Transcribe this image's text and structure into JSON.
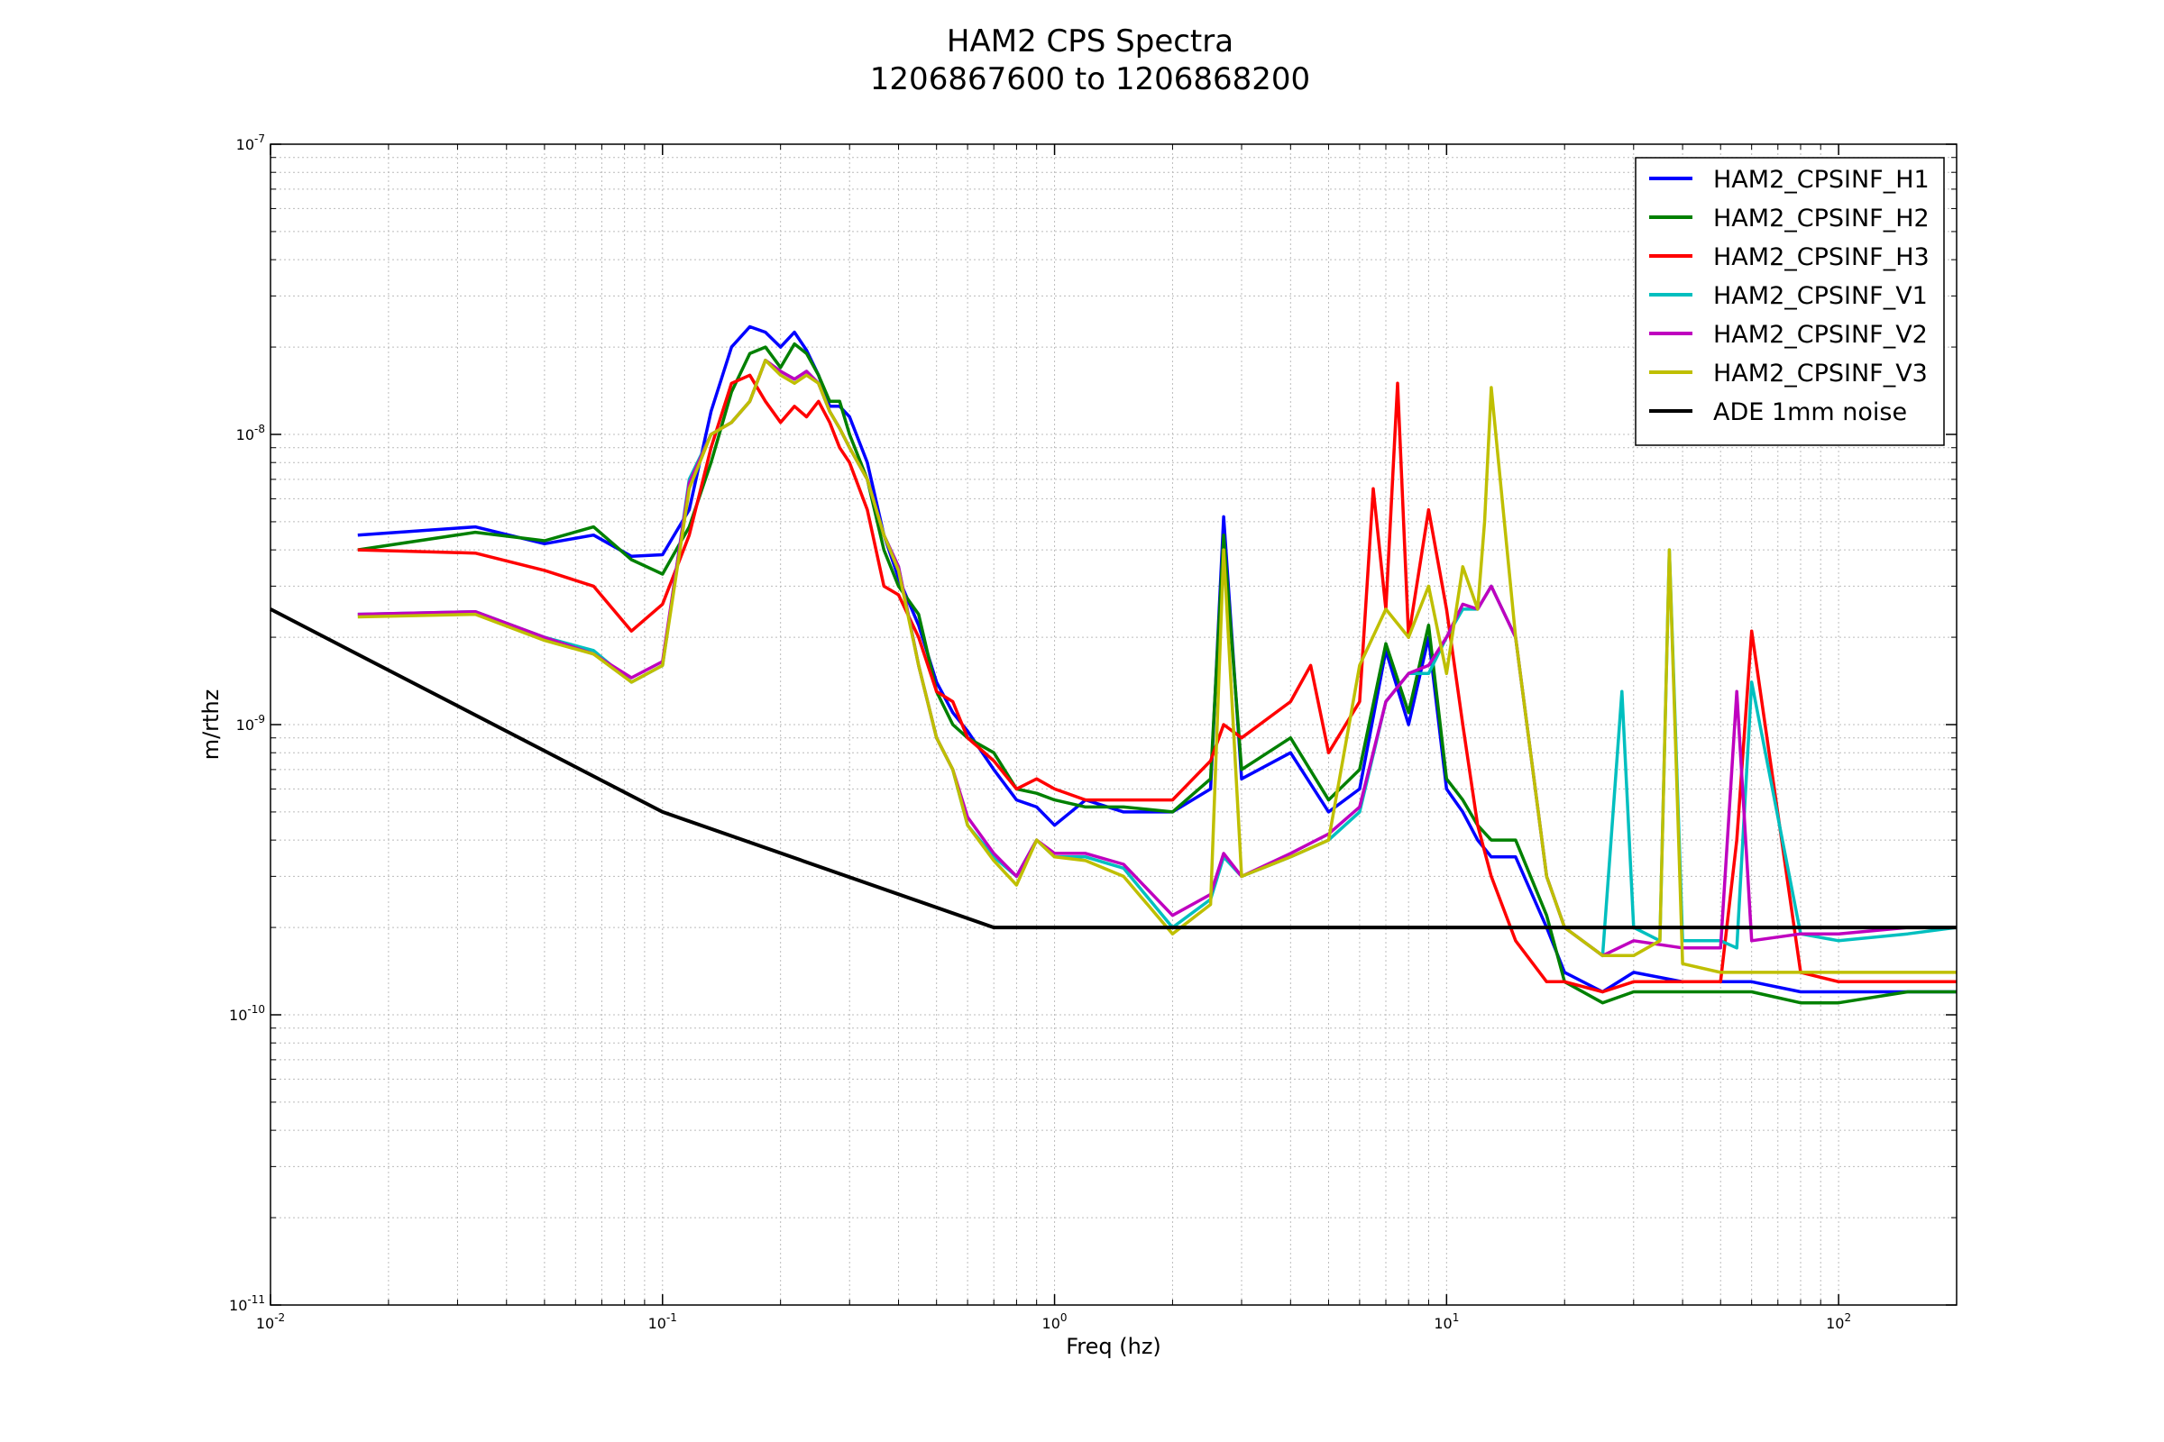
{
  "chart_data": {
    "type": "line",
    "title": "HAM2 CPS Spectra",
    "subtitle": "1206867600 to 1206868200",
    "xlabel": "Freq (hz)",
    "ylabel": "m/rthz",
    "xscale": "log",
    "yscale": "log",
    "xlim": [
      0.01,
      200
    ],
    "ylim": [
      1e-11,
      1e-07
    ],
    "grid": true,
    "legend_position": "top-right",
    "x_ticks": [
      {
        "value": 0.01,
        "base": "10",
        "exp": "-2"
      },
      {
        "value": 0.1,
        "base": "10",
        "exp": "-1"
      },
      {
        "value": 1,
        "base": "10",
        "exp": "0"
      },
      {
        "value": 10,
        "base": "10",
        "exp": "1"
      },
      {
        "value": 100,
        "base": "10",
        "exp": "2"
      }
    ],
    "y_ticks": [
      {
        "value": 1e-11,
        "base": "10",
        "exp": "-11"
      },
      {
        "value": 1e-10,
        "base": "10",
        "exp": "-10"
      },
      {
        "value": 1e-09,
        "base": "10",
        "exp": "-9"
      },
      {
        "value": 1e-08,
        "base": "10",
        "exp": "-8"
      },
      {
        "value": 1e-07,
        "base": "10",
        "exp": "-7"
      }
    ],
    "series": [
      {
        "name": "HAM2_CPSINF_H1",
        "color": "#0000ff",
        "x": [
          0.0167,
          0.0333,
          0.05,
          0.0667,
          0.0833,
          0.1,
          0.117,
          0.133,
          0.15,
          0.167,
          0.183,
          0.2,
          0.217,
          0.233,
          0.25,
          0.267,
          0.283,
          0.3,
          0.333,
          0.367,
          0.4,
          0.45,
          0.5,
          0.55,
          0.6,
          0.7,
          0.8,
          0.9,
          1.0,
          1.2,
          1.5,
          2.0,
          2.5,
          2.7,
          3.0,
          4.0,
          5.0,
          6.0,
          7.0,
          8.0,
          9.0,
          10,
          11,
          12,
          13,
          15,
          18,
          20,
          25,
          30,
          40,
          50,
          60,
          80,
          100,
          150,
          200
        ],
        "y": [
          4.5e-09,
          4.8e-09,
          4.2e-09,
          4.5e-09,
          3.8e-09,
          3.85e-09,
          5.5e-09,
          1.2e-08,
          2e-08,
          2.35e-08,
          2.25e-08,
          2e-08,
          2.25e-08,
          1.95e-08,
          1.6e-08,
          1.25e-08,
          1.25e-08,
          1.15e-08,
          8e-09,
          4.5e-09,
          3.2e-09,
          2.2e-09,
          1.4e-09,
          1.1e-09,
          9.5e-10,
          7e-10,
          5.5e-10,
          5.2e-10,
          4.5e-10,
          5.5e-10,
          5e-10,
          5e-10,
          6e-10,
          5.2e-09,
          6.5e-10,
          8e-10,
          5e-10,
          6e-10,
          1.8e-09,
          1e-09,
          2e-09,
          6e-10,
          5e-10,
          4e-10,
          3.5e-10,
          3.5e-10,
          2e-10,
          1.4e-10,
          1.2e-10,
          1.4e-10,
          1.3e-10,
          1.3e-10,
          1.3e-10,
          1.2e-10,
          1.2e-10,
          1.2e-10,
          1.2e-10
        ]
      },
      {
        "name": "HAM2_CPSINF_H2",
        "color": "#008000",
        "x": [
          0.0167,
          0.0333,
          0.05,
          0.0667,
          0.0833,
          0.1,
          0.117,
          0.133,
          0.15,
          0.167,
          0.183,
          0.2,
          0.217,
          0.233,
          0.25,
          0.267,
          0.283,
          0.3,
          0.333,
          0.367,
          0.4,
          0.45,
          0.5,
          0.55,
          0.6,
          0.7,
          0.8,
          0.9,
          1.0,
          1.2,
          1.5,
          2.0,
          2.5,
          2.7,
          3.0,
          4.0,
          5.0,
          6.0,
          7.0,
          8.0,
          9.0,
          10,
          11,
          12,
          13,
          15,
          18,
          20,
          25,
          30,
          40,
          50,
          60,
          80,
          100,
          150,
          200
        ],
        "y": [
          4e-09,
          4.6e-09,
          4.3e-09,
          4.8e-09,
          3.7e-09,
          3.3e-09,
          4.8e-09,
          8e-09,
          1.4e-08,
          1.9e-08,
          2e-08,
          1.7e-08,
          2.05e-08,
          1.9e-08,
          1.6e-08,
          1.3e-08,
          1.3e-08,
          1e-08,
          7e-09,
          4e-09,
          3e-09,
          2.4e-09,
          1.3e-09,
          1e-09,
          9e-10,
          8e-10,
          6e-10,
          5.8e-10,
          5.5e-10,
          5.2e-10,
          5.2e-10,
          5e-10,
          6.5e-10,
          4.5e-09,
          7e-10,
          9e-10,
          5.5e-10,
          7e-10,
          1.9e-09,
          1.1e-09,
          2.2e-09,
          6.5e-10,
          5.5e-10,
          4.5e-10,
          4e-10,
          4e-10,
          2.2e-10,
          1.3e-10,
          1.1e-10,
          1.2e-10,
          1.2e-10,
          1.2e-10,
          1.2e-10,
          1.1e-10,
          1.1e-10,
          1.2e-10,
          1.2e-10
        ]
      },
      {
        "name": "HAM2_CPSINF_H3",
        "color": "#ff0000",
        "x": [
          0.0167,
          0.0333,
          0.05,
          0.0667,
          0.0833,
          0.1,
          0.117,
          0.133,
          0.15,
          0.167,
          0.183,
          0.2,
          0.217,
          0.233,
          0.25,
          0.267,
          0.283,
          0.3,
          0.333,
          0.367,
          0.4,
          0.45,
          0.5,
          0.55,
          0.6,
          0.7,
          0.8,
          0.9,
          1.0,
          1.2,
          1.5,
          2.0,
          2.5,
          2.7,
          3.0,
          4.0,
          4.5,
          5.0,
          6.0,
          6.5,
          7.0,
          7.5,
          8.0,
          9.0,
          10,
          11,
          12,
          13,
          15,
          18,
          20,
          25,
          30,
          40,
          50,
          55,
          60,
          80,
          100,
          150,
          200
        ],
        "y": [
          4e-09,
          3.9e-09,
          3.4e-09,
          3e-09,
          2.1e-09,
          2.6e-09,
          4.5e-09,
          9e-09,
          1.5e-08,
          1.6e-08,
          1.3e-08,
          1.1e-08,
          1.25e-08,
          1.15e-08,
          1.3e-08,
          1.1e-08,
          9e-09,
          8e-09,
          5.5e-09,
          3e-09,
          2.8e-09,
          2e-09,
          1.3e-09,
          1.2e-09,
          9e-10,
          7.5e-10,
          6e-10,
          6.5e-10,
          6e-10,
          5.5e-10,
          5.5e-10,
          5.5e-10,
          7.5e-10,
          1e-09,
          9e-10,
          1.2e-09,
          1.6e-09,
          8e-10,
          1.2e-09,
          6.5e-09,
          2.5e-09,
          1.5e-08,
          2e-09,
          5.5e-09,
          2.5e-09,
          1e-09,
          4.5e-10,
          3e-10,
          1.8e-10,
          1.3e-10,
          1.3e-10,
          1.2e-10,
          1.3e-10,
          1.3e-10,
          1.3e-10,
          4e-10,
          2.1e-09,
          1.4e-10,
          1.3e-10,
          1.3e-10,
          1.3e-10
        ]
      },
      {
        "name": "HAM2_CPSINF_V1",
        "color": "#00bfbf",
        "x": [
          0.0167,
          0.0333,
          0.05,
          0.0667,
          0.0833,
          0.1,
          0.117,
          0.133,
          0.15,
          0.167,
          0.183,
          0.2,
          0.217,
          0.233,
          0.25,
          0.267,
          0.283,
          0.3,
          0.333,
          0.367,
          0.4,
          0.45,
          0.5,
          0.55,
          0.6,
          0.7,
          0.8,
          0.9,
          1.0,
          1.2,
          1.5,
          2.0,
          2.5,
          2.7,
          3.0,
          4.0,
          5.0,
          6.0,
          7.0,
          8.0,
          9.0,
          10,
          11,
          12,
          13,
          15,
          18,
          20,
          25,
          28,
          30,
          35,
          37,
          40,
          50,
          55,
          60,
          80,
          100,
          150,
          200
        ],
        "y": [
          2.4e-09,
          2.45e-09,
          2e-09,
          1.8e-09,
          1.4e-09,
          1.6e-09,
          7e-09,
          1e-08,
          1.1e-08,
          1.3e-08,
          1.8e-08,
          1.65e-08,
          1.55e-08,
          1.65e-08,
          1.5e-08,
          1.2e-08,
          1.05e-08,
          9e-09,
          7e-09,
          4.5e-09,
          3.5e-09,
          1.6e-09,
          9e-10,
          7e-10,
          4.5e-10,
          3.5e-10,
          3e-10,
          4e-10,
          3.5e-10,
          3.5e-10,
          3.2e-10,
          2e-10,
          2.5e-10,
          3.5e-10,
          3e-10,
          3.5e-10,
          4e-10,
          5e-10,
          1.2e-09,
          1.5e-09,
          1.5e-09,
          2e-09,
          2.5e-09,
          2.5e-09,
          3e-09,
          2e-09,
          3e-10,
          2e-10,
          1.6e-10,
          1.3e-09,
          2e-10,
          1.8e-10,
          4e-09,
          1.8e-10,
          1.8e-10,
          1.7e-10,
          1.4e-09,
          1.9e-10,
          1.8e-10,
          1.9e-10,
          2e-10
        ]
      },
      {
        "name": "HAM2_CPSINF_V2",
        "color": "#bf00bf",
        "x": [
          0.0167,
          0.0333,
          0.05,
          0.0667,
          0.0833,
          0.1,
          0.117,
          0.133,
          0.15,
          0.167,
          0.183,
          0.2,
          0.217,
          0.233,
          0.25,
          0.267,
          0.283,
          0.3,
          0.333,
          0.367,
          0.4,
          0.45,
          0.5,
          0.55,
          0.6,
          0.7,
          0.8,
          0.9,
          1.0,
          1.2,
          1.5,
          2.0,
          2.5,
          2.7,
          3.0,
          4.0,
          5.0,
          6.0,
          7.0,
          8.0,
          9.0,
          10,
          11,
          12,
          13,
          15,
          18,
          20,
          25,
          30,
          40,
          50,
          55,
          60,
          80,
          100,
          150,
          200
        ],
        "y": [
          2.4e-09,
          2.45e-09,
          2e-09,
          1.75e-09,
          1.45e-09,
          1.65e-09,
          6.8e-09,
          1e-08,
          1.1e-08,
          1.3e-08,
          1.8e-08,
          1.65e-08,
          1.55e-08,
          1.65e-08,
          1.5e-08,
          1.2e-08,
          1.05e-08,
          9e-09,
          7e-09,
          4.5e-09,
          3.5e-09,
          1.6e-09,
          9e-10,
          7e-10,
          4.8e-10,
          3.6e-10,
          3e-10,
          4e-10,
          3.6e-10,
          3.6e-10,
          3.3e-10,
          2.2e-10,
          2.6e-10,
          3.6e-10,
          3e-10,
          3.6e-10,
          4.2e-10,
          5.2e-10,
          1.2e-09,
          1.5e-09,
          1.6e-09,
          2e-09,
          2.6e-09,
          2.5e-09,
          3e-09,
          2e-09,
          3e-10,
          2e-10,
          1.6e-10,
          1.8e-10,
          1.7e-10,
          1.7e-10,
          1.3e-09,
          1.8e-10,
          1.9e-10,
          1.9e-10,
          2e-10,
          2e-10
        ]
      },
      {
        "name": "HAM2_CPSINF_V3",
        "color": "#bfbf00",
        "x": [
          0.0167,
          0.0333,
          0.05,
          0.0667,
          0.0833,
          0.1,
          0.117,
          0.133,
          0.15,
          0.167,
          0.183,
          0.2,
          0.217,
          0.233,
          0.25,
          0.267,
          0.283,
          0.3,
          0.333,
          0.367,
          0.4,
          0.45,
          0.5,
          0.55,
          0.6,
          0.7,
          0.8,
          0.9,
          1.0,
          1.2,
          1.5,
          2.0,
          2.5,
          2.7,
          3.0,
          4.0,
          5.0,
          6.0,
          7.0,
          8.0,
          9.0,
          10,
          11,
          12,
          12.5,
          13,
          15,
          18,
          20,
          25,
          30,
          35,
          37,
          40,
          50,
          60,
          80,
          100,
          150,
          200
        ],
        "y": [
          2.35e-09,
          2.4e-09,
          1.95e-09,
          1.75e-09,
          1.4e-09,
          1.6e-09,
          6.5e-09,
          1e-08,
          1.1e-08,
          1.3e-08,
          1.8e-08,
          1.6e-08,
          1.5e-08,
          1.6e-08,
          1.5e-08,
          1.2e-08,
          1.05e-08,
          9e-09,
          7e-09,
          4.5e-09,
          3.4e-09,
          1.6e-09,
          9e-10,
          7e-10,
          4.5e-10,
          3.4e-10,
          2.8e-10,
          4e-10,
          3.5e-10,
          3.4e-10,
          3e-10,
          1.9e-10,
          2.4e-10,
          4e-09,
          3e-10,
          3.5e-10,
          4e-10,
          1.6e-09,
          2.5e-09,
          2e-09,
          3e-09,
          1.5e-09,
          3.5e-09,
          2.5e-09,
          5e-09,
          1.45e-08,
          2e-09,
          3e-10,
          2e-10,
          1.6e-10,
          1.6e-10,
          1.8e-10,
          4e-09,
          1.5e-10,
          1.4e-10,
          1.4e-10,
          1.4e-10,
          1.4e-10,
          1.4e-10,
          1.4e-10
        ]
      },
      {
        "name": "ADE 1mm noise",
        "color": "#000000",
        "x": [
          0.01,
          0.1,
          0.7,
          200
        ],
        "y": [
          2.5e-09,
          5e-10,
          2e-10,
          2e-10
        ]
      }
    ]
  }
}
